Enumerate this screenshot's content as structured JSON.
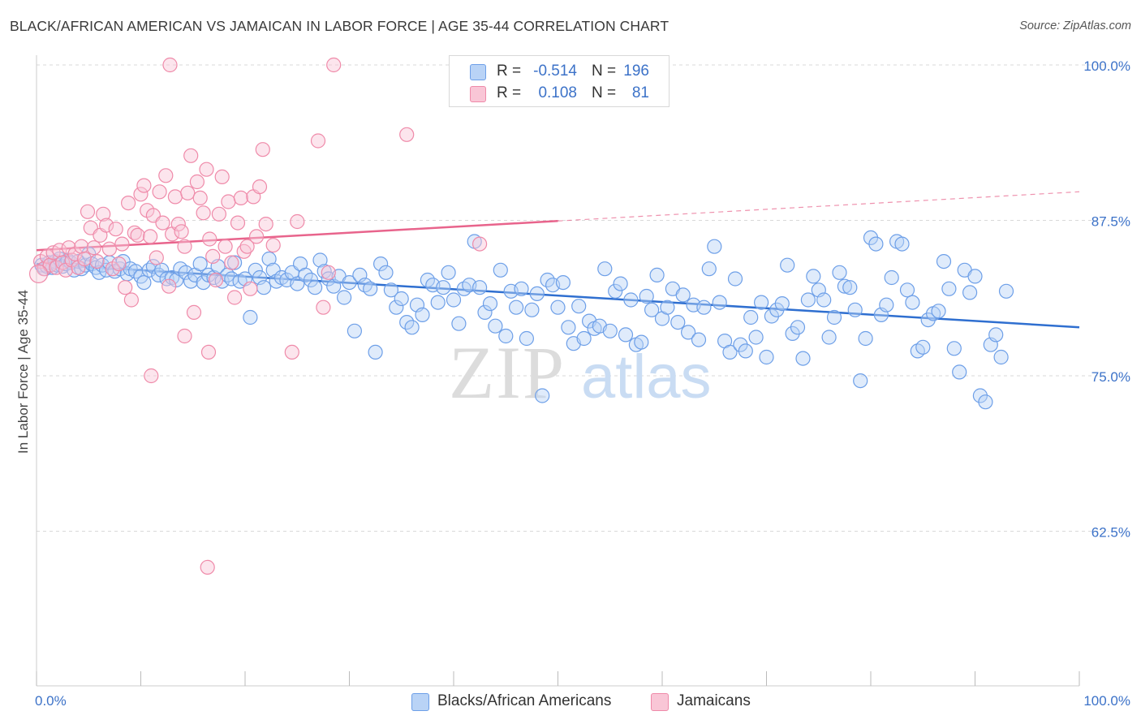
{
  "title": "BLACK/AFRICAN AMERICAN VS JAMAICAN IN LABOR FORCE | AGE 35-44 CORRELATION CHART",
  "source": "Source: ZipAtlas.com",
  "watermark": {
    "zip": "ZIP",
    "atlas": "atlas"
  },
  "legend": {
    "rows": [
      {
        "r_label": "R =",
        "r_value": "-0.514",
        "n_label": "N =",
        "n_value": "196",
        "color": "#6d9fe8",
        "fill": "#b9d3f6"
      },
      {
        "r_label": "R =",
        "r_value": "0.108",
        "n_label": "N =",
        "n_value": "81",
        "color": "#ef8aa9",
        "fill": "#f9c6d6"
      }
    ],
    "bottom": [
      "Blacks/African Americans",
      "Jamaicans"
    ]
  },
  "colors": {
    "blue": "#6d9fe8",
    "blue_line": "#2f6fd0",
    "pink": "#ef8aa9",
    "pink_line": "#e8648c",
    "tick_label": "#3c72c8",
    "grid": "#d9d9d9"
  },
  "chart_data": {
    "type": "scatter",
    "title": "BLACK/AFRICAN AMERICAN VS JAMAICAN IN LABOR FORCE | AGE 35-44 CORRELATION CHART",
    "ylabel": "In Labor Force | Age 35-44",
    "xlabel": "",
    "xlim": [
      0,
      100
    ],
    "ylim": [
      50,
      101
    ],
    "x_tick_labels": [
      "0.0%",
      "100.0%"
    ],
    "y_ticks": [
      100,
      87.5,
      75,
      62.5
    ],
    "y_tick_labels": [
      "100.0%",
      "87.5%",
      "75.0%",
      "62.5%"
    ],
    "grid": true,
    "legend_position": "top-center",
    "series": [
      {
        "name": "Blacks/African Americans",
        "color": "#6d9fe8",
        "trend": {
          "x": [
            0,
            100
          ],
          "y": [
            84.0,
            78.9
          ],
          "dashed_from": null
        },
        "points": [
          [
            0.5,
            83.9
          ],
          [
            0.8,
            83.6
          ],
          [
            1.0,
            83.8
          ],
          [
            1.2,
            84.1
          ],
          [
            1.5,
            83.7
          ],
          [
            1.8,
            84.2
          ],
          [
            2.0,
            83.9
          ],
          [
            2.2,
            84.4
          ],
          [
            2.5,
            83.8
          ],
          [
            2.8,
            84.0
          ],
          [
            3.0,
            84.3
          ],
          [
            3.3,
            84.1
          ],
          [
            3.6,
            83.5
          ],
          [
            4.0,
            84.2
          ],
          [
            4.3,
            83.6
          ],
          [
            4.7,
            83.9
          ],
          [
            5.0,
            84.8
          ],
          [
            5.3,
            84.0
          ],
          [
            5.7,
            83.7
          ],
          [
            6.0,
            83.3
          ],
          [
            6.3,
            83.9
          ],
          [
            6.7,
            83.5
          ],
          [
            7.0,
            84.1
          ],
          [
            7.5,
            83.4
          ],
          [
            8.0,
            83.6
          ],
          [
            8.3,
            84.2
          ],
          [
            8.7,
            83.2
          ],
          [
            9.0,
            83.6
          ],
          [
            9.5,
            83.4
          ],
          [
            10.0,
            83.0
          ],
          [
            10.3,
            82.5
          ],
          [
            10.8,
            83.5
          ],
          [
            11.2,
            83.8
          ],
          [
            11.7,
            83.1
          ],
          [
            12.0,
            83.5
          ],
          [
            12.5,
            82.8
          ],
          [
            13.0,
            82.9
          ],
          [
            13.4,
            82.7
          ],
          [
            13.8,
            83.6
          ],
          [
            14.3,
            83.3
          ],
          [
            14.8,
            82.6
          ],
          [
            15.2,
            83.1
          ],
          [
            15.7,
            84.0
          ],
          [
            16.0,
            82.5
          ],
          [
            16.5,
            83.1
          ],
          [
            17.0,
            82.9
          ],
          [
            17.4,
            83.8
          ],
          [
            17.8,
            82.6
          ],
          [
            18.3,
            83.1
          ],
          [
            18.7,
            82.8
          ],
          [
            19.0,
            84.1
          ],
          [
            19.5,
            82.6
          ],
          [
            20.0,
            82.8
          ],
          [
            20.5,
            79.7
          ],
          [
            21.0,
            83.5
          ],
          [
            21.4,
            82.9
          ],
          [
            21.8,
            82.1
          ],
          [
            22.3,
            84.4
          ],
          [
            22.7,
            83.5
          ],
          [
            23.0,
            82.6
          ],
          [
            23.5,
            82.9
          ],
          [
            24.0,
            82.7
          ],
          [
            24.5,
            83.3
          ],
          [
            25.0,
            82.4
          ],
          [
            25.3,
            84.0
          ],
          [
            25.8,
            83.1
          ],
          [
            26.3,
            82.7
          ],
          [
            26.7,
            82.1
          ],
          [
            27.2,
            84.3
          ],
          [
            27.6,
            83.4
          ],
          [
            28.0,
            82.8
          ],
          [
            28.5,
            82.2
          ],
          [
            29.0,
            83.0
          ],
          [
            29.5,
            81.3
          ],
          [
            30.0,
            82.5
          ],
          [
            30.5,
            78.6
          ],
          [
            31.0,
            83.1
          ],
          [
            31.5,
            82.3
          ],
          [
            32.0,
            82.0
          ],
          [
            32.5,
            76.9
          ],
          [
            33.0,
            84.0
          ],
          [
            33.5,
            83.3
          ],
          [
            34.0,
            81.9
          ],
          [
            34.5,
            80.5
          ],
          [
            35.0,
            81.2
          ],
          [
            35.5,
            79.3
          ],
          [
            36.0,
            78.9
          ],
          [
            36.5,
            80.7
          ],
          [
            37.0,
            79.9
          ],
          [
            37.5,
            82.7
          ],
          [
            38.0,
            82.3
          ],
          [
            38.5,
            80.9
          ],
          [
            39.0,
            82.1
          ],
          [
            39.5,
            83.3
          ],
          [
            40.0,
            81.1
          ],
          [
            40.5,
            79.2
          ],
          [
            41.0,
            82.0
          ],
          [
            41.5,
            82.3
          ],
          [
            42.0,
            85.8
          ],
          [
            42.5,
            82.1
          ],
          [
            43.0,
            80.1
          ],
          [
            43.5,
            80.8
          ],
          [
            44.0,
            79.0
          ],
          [
            44.5,
            83.5
          ],
          [
            45.0,
            78.2
          ],
          [
            45.5,
            81.8
          ],
          [
            46.0,
            80.5
          ],
          [
            46.5,
            82.0
          ],
          [
            47.0,
            78.0
          ],
          [
            47.5,
            80.3
          ],
          [
            48.0,
            81.6
          ],
          [
            48.5,
            73.4
          ],
          [
            49.0,
            82.7
          ],
          [
            49.5,
            82.3
          ],
          [
            50.0,
            80.5
          ],
          [
            50.5,
            82.5
          ],
          [
            51.0,
            78.9
          ],
          [
            51.5,
            77.6
          ],
          [
            52.0,
            80.6
          ],
          [
            52.5,
            78.0
          ],
          [
            53.0,
            79.4
          ],
          [
            53.5,
            78.8
          ],
          [
            54.0,
            79.0
          ],
          [
            54.5,
            83.6
          ],
          [
            55.0,
            78.6
          ],
          [
            55.5,
            81.8
          ],
          [
            56.0,
            82.4
          ],
          [
            56.5,
            78.3
          ],
          [
            57.0,
            81.1
          ],
          [
            57.5,
            77.5
          ],
          [
            58.0,
            77.7
          ],
          [
            58.5,
            81.4
          ],
          [
            59.0,
            80.3
          ],
          [
            59.5,
            83.1
          ],
          [
            60.0,
            79.6
          ],
          [
            60.5,
            80.5
          ],
          [
            61.0,
            82.0
          ],
          [
            61.5,
            79.3
          ],
          [
            62.0,
            81.5
          ],
          [
            62.5,
            78.5
          ],
          [
            63.0,
            80.7
          ],
          [
            63.5,
            77.9
          ],
          [
            64.0,
            80.5
          ],
          [
            64.5,
            83.6
          ],
          [
            65.0,
            85.4
          ],
          [
            65.5,
            80.9
          ],
          [
            66.0,
            77.8
          ],
          [
            66.5,
            76.9
          ],
          [
            67.0,
            82.8
          ],
          [
            67.5,
            77.5
          ],
          [
            68.0,
            77.0
          ],
          [
            68.5,
            79.7
          ],
          [
            69.0,
            78.1
          ],
          [
            69.5,
            80.9
          ],
          [
            70.0,
            76.5
          ],
          [
            70.5,
            79.8
          ],
          [
            71.0,
            80.3
          ],
          [
            71.5,
            80.8
          ],
          [
            72.0,
            83.9
          ],
          [
            72.5,
            78.4
          ],
          [
            73.0,
            78.9
          ],
          [
            73.5,
            76.4
          ],
          [
            74.0,
            81.1
          ],
          [
            74.5,
            83.0
          ],
          [
            75.0,
            81.9
          ],
          [
            75.5,
            81.1
          ],
          [
            76.0,
            78.1
          ],
          [
            76.5,
            79.7
          ],
          [
            77.0,
            83.3
          ],
          [
            77.5,
            82.2
          ],
          [
            78.0,
            82.1
          ],
          [
            78.5,
            80.3
          ],
          [
            79.0,
            74.6
          ],
          [
            79.5,
            78.0
          ],
          [
            80.0,
            86.1
          ],
          [
            80.5,
            85.6
          ],
          [
            81.0,
            79.9
          ],
          [
            81.5,
            80.7
          ],
          [
            82.0,
            82.9
          ],
          [
            82.5,
            85.8
          ],
          [
            83.0,
            85.6
          ],
          [
            83.5,
            81.9
          ],
          [
            84.0,
            80.9
          ],
          [
            84.5,
            77.0
          ],
          [
            85.0,
            77.3
          ],
          [
            85.5,
            79.5
          ],
          [
            86.0,
            80.0
          ],
          [
            86.5,
            80.2
          ],
          [
            87.0,
            84.2
          ],
          [
            87.5,
            82.0
          ],
          [
            88.0,
            77.2
          ],
          [
            88.5,
            75.3
          ],
          [
            89.0,
            83.5
          ],
          [
            89.5,
            81.7
          ],
          [
            90.0,
            83.0
          ],
          [
            90.5,
            73.4
          ],
          [
            91.0,
            72.9
          ],
          [
            91.5,
            77.5
          ],
          [
            92.0,
            78.3
          ],
          [
            92.5,
            76.5
          ],
          [
            93.0,
            81.8
          ]
        ]
      },
      {
        "name": "Jamaicans",
        "color": "#ef8aa9",
        "trend": {
          "x": [
            0,
            100
          ],
          "y": [
            85.1,
            89.8
          ],
          "dashed_from": 50
        },
        "points": [
          [
            0.4,
            84.2
          ],
          [
            0.7,
            83.6
          ],
          [
            1.0,
            84.6
          ],
          [
            1.3,
            83.9
          ],
          [
            1.6,
            84.9
          ],
          [
            1.9,
            83.7
          ],
          [
            2.2,
            85.1
          ],
          [
            2.5,
            84.1
          ],
          [
            2.8,
            83.5
          ],
          [
            3.1,
            85.3
          ],
          [
            3.4,
            84.3
          ],
          [
            3.7,
            84.8
          ],
          [
            4.0,
            83.7
          ],
          [
            4.3,
            85.4
          ],
          [
            4.6,
            84.4
          ],
          [
            4.9,
            88.2
          ],
          [
            5.2,
            86.9
          ],
          [
            5.5,
            85.3
          ],
          [
            5.8,
            84.2
          ],
          [
            6.1,
            86.3
          ],
          [
            6.4,
            88.0
          ],
          [
            6.7,
            87.1
          ],
          [
            7.0,
            85.2
          ],
          [
            7.3,
            83.6
          ],
          [
            7.6,
            86.8
          ],
          [
            7.9,
            84.0
          ],
          [
            8.2,
            85.6
          ],
          [
            8.5,
            82.1
          ],
          [
            8.8,
            88.9
          ],
          [
            9.1,
            81.1
          ],
          [
            9.4,
            86.5
          ],
          [
            9.7,
            86.3
          ],
          [
            10.0,
            89.6
          ],
          [
            10.3,
            90.3
          ],
          [
            10.6,
            88.3
          ],
          [
            10.9,
            86.2
          ],
          [
            11.2,
            87.9
          ],
          [
            11.5,
            84.5
          ],
          [
            11.8,
            89.8
          ],
          [
            12.1,
            87.3
          ],
          [
            12.4,
            91.1
          ],
          [
            12.7,
            82.2
          ],
          [
            13.0,
            86.4
          ],
          [
            13.3,
            89.4
          ],
          [
            13.6,
            87.2
          ],
          [
            13.9,
            86.6
          ],
          [
            14.2,
            85.4
          ],
          [
            14.5,
            89.7
          ],
          [
            14.8,
            92.7
          ],
          [
            15.1,
            80.1
          ],
          [
            15.4,
            90.6
          ],
          [
            15.7,
            89.3
          ],
          [
            16.0,
            88.1
          ],
          [
            16.3,
            91.6
          ],
          [
            16.6,
            86.0
          ],
          [
            16.9,
            84.6
          ],
          [
            17.2,
            82.7
          ],
          [
            17.5,
            88.0
          ],
          [
            17.8,
            91.0
          ],
          [
            18.1,
            85.4
          ],
          [
            18.4,
            89.0
          ],
          [
            18.7,
            84.1
          ],
          [
            19.0,
            81.3
          ],
          [
            19.3,
            87.3
          ],
          [
            19.6,
            89.3
          ],
          [
            19.9,
            85.0
          ],
          [
            20.2,
            85.4
          ],
          [
            20.5,
            82.0
          ],
          [
            20.8,
            89.4
          ],
          [
            21.1,
            86.2
          ],
          [
            21.4,
            90.2
          ],
          [
            21.7,
            93.2
          ],
          [
            22.0,
            87.2
          ],
          [
            11.0,
            75.0
          ],
          [
            16.5,
            76.9
          ],
          [
            24.5,
            76.9
          ],
          [
            27.5,
            80.5
          ],
          [
            27.0,
            93.9
          ],
          [
            28.5,
            100.0
          ],
          [
            12.8,
            100.0
          ],
          [
            35.5,
            94.4
          ],
          [
            16.4,
            59.6
          ],
          [
            42.5,
            85.6
          ],
          [
            22.7,
            85.5
          ],
          [
            25.0,
            87.4
          ],
          [
            14.2,
            78.2
          ],
          [
            28.0,
            83.3
          ]
        ]
      }
    ]
  }
}
